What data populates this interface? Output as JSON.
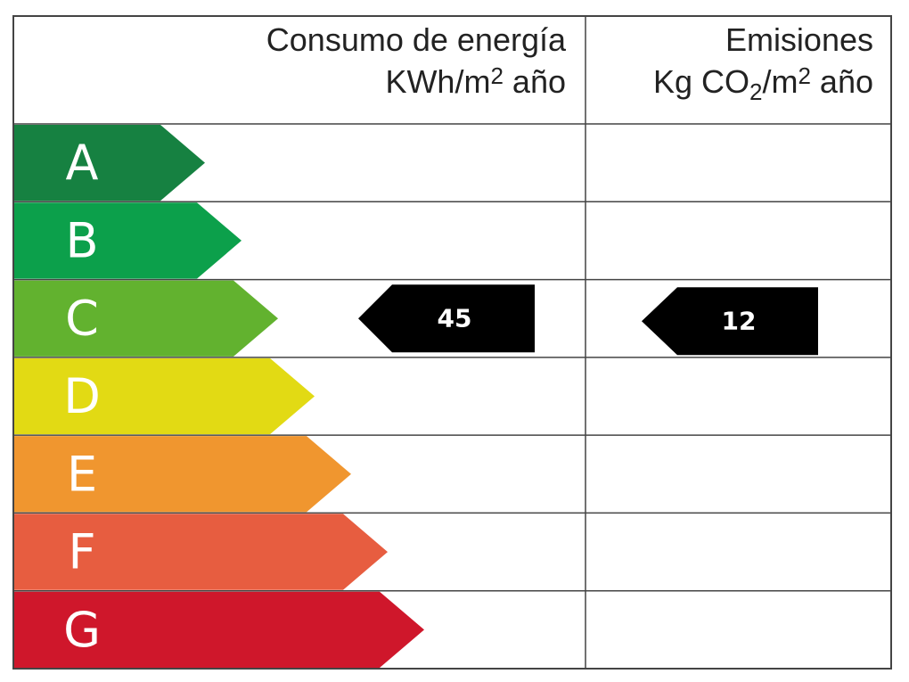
{
  "header": {
    "energy": {
      "title": "Consumo de energía",
      "unit": {
        "base": "KWh/m",
        "sup": "2",
        "rest": "año"
      }
    },
    "emissions": {
      "title": "Emisiones",
      "unit": {
        "pre": "Kg CO",
        "sub": "2",
        "base": "/m",
        "sup": "2",
        "rest": "año"
      }
    }
  },
  "rows": [
    {
      "letter": "A",
      "color": "#168141"
    },
    {
      "letter": "B",
      "color": "#0ca04b"
    },
    {
      "letter": "C",
      "color": "#62b22f",
      "energy": 45,
      "emissions": 12
    },
    {
      "letter": "D",
      "color": "#e2da14"
    },
    {
      "letter": "E",
      "color": "#f0962f"
    },
    {
      "letter": "F",
      "color": "#e75d40"
    },
    {
      "letter": "G",
      "color": "#cf172b"
    }
  ]
}
